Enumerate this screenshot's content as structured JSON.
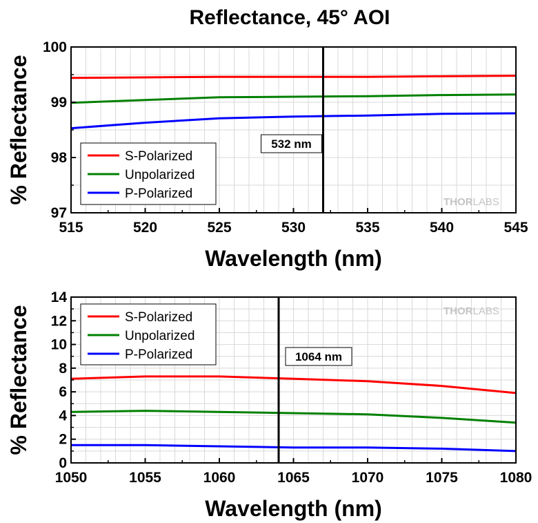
{
  "figure": {
    "title": "Reflectance, 45° AOI",
    "watermark_bold": "THOR",
    "watermark_light": "LABS"
  },
  "colors": {
    "s": "#ff0000",
    "u": "#008000",
    "p": "#0000ff"
  },
  "chart_data": [
    {
      "type": "line",
      "xlabel": "Wavelength (nm)",
      "ylabel": "% Reflectance",
      "xlim": [
        515,
        545
      ],
      "ylim": [
        97,
        100
      ],
      "xticks": [
        "515",
        "520",
        "525",
        "530",
        "535",
        "540",
        "545"
      ],
      "yticks": [
        "97",
        "98",
        "99",
        "100"
      ],
      "grid": true,
      "legend": "bottom-left",
      "annotation": {
        "x": 532,
        "label": "532 nm"
      },
      "x": [
        515,
        520,
        525,
        530,
        535,
        540,
        545
      ],
      "series": [
        {
          "name": "S-Polarized",
          "color": "#ff0000",
          "values": [
            99.44,
            99.45,
            99.46,
            99.46,
            99.46,
            99.47,
            99.48
          ]
        },
        {
          "name": "Unpolarized",
          "color": "#008000",
          "values": [
            98.99,
            99.04,
            99.09,
            99.1,
            99.11,
            99.13,
            99.14
          ]
        },
        {
          "name": "P-Polarized",
          "color": "#0000ff",
          "values": [
            98.53,
            98.63,
            98.71,
            98.74,
            98.76,
            98.79,
            98.8
          ]
        }
      ]
    },
    {
      "type": "line",
      "xlabel": "Wavelength (nm)",
      "ylabel": "% Reflectance",
      "xlim": [
        1050,
        1080
      ],
      "ylim": [
        0,
        14
      ],
      "xticks": [
        "1050",
        "1055",
        "1060",
        "1065",
        "1070",
        "1075",
        "1080"
      ],
      "yticks": [
        "0",
        "2",
        "4",
        "6",
        "8",
        "10",
        "12",
        "14"
      ],
      "grid": true,
      "legend": "top-left",
      "annotation": {
        "x": 1064,
        "label": "1064 nm"
      },
      "x": [
        1050,
        1055,
        1060,
        1065,
        1070,
        1075,
        1080
      ],
      "series": [
        {
          "name": "S-Polarized",
          "color": "#ff0000",
          "values": [
            7.1,
            7.3,
            7.3,
            7.1,
            6.9,
            6.5,
            5.9
          ]
        },
        {
          "name": "Unpolarized",
          "color": "#008000",
          "values": [
            4.3,
            4.4,
            4.3,
            4.2,
            4.1,
            3.8,
            3.4
          ]
        },
        {
          "name": "P-Polarized",
          "color": "#0000ff",
          "values": [
            1.5,
            1.5,
            1.4,
            1.3,
            1.3,
            1.2,
            1.0
          ]
        }
      ]
    }
  ]
}
